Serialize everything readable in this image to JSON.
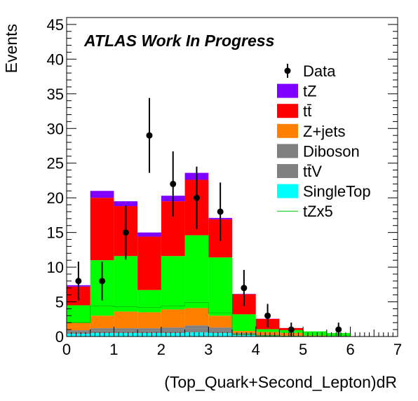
{
  "chart_data": {
    "type": "bar",
    "subtype": "stacked-histogram",
    "title": "ATLAS Work In Progress",
    "xlabel": "(Top_Quark+Second_Lepton)dR",
    "ylabel": "Events",
    "xlim": [
      0,
      7
    ],
    "ylim": [
      0,
      46
    ],
    "bin_edges": [
      0,
      0.5,
      1.0,
      1.5,
      2.0,
      2.5,
      3.0,
      3.5,
      4.0,
      4.5,
      5.0,
      5.5,
      6.0,
      6.5,
      7.0
    ],
    "x_ticks": [
      "0",
      "1",
      "2",
      "3",
      "4",
      "5",
      "6",
      "7"
    ],
    "y_ticks": [
      "0",
      "5",
      "10",
      "15",
      "20",
      "25",
      "30",
      "35",
      "40",
      "45"
    ],
    "legend_position": "top-right",
    "stack": [
      {
        "name": "SingleTop",
        "label": "SingleTop",
        "color": "#00ffff",
        "values": [
          0.4,
          0.5,
          0.5,
          0.5,
          0.5,
          0.6,
          0.5,
          0.2,
          0.1,
          0.05,
          0.02,
          0,
          0,
          0
        ]
      },
      {
        "name": "ttV",
        "label": "tt̄V",
        "color": "#808080",
        "values": [
          0.3,
          0.4,
          0.4,
          0.4,
          0.5,
          0.6,
          0.5,
          0.2,
          0.1,
          0.05,
          0.02,
          0,
          0,
          0
        ]
      },
      {
        "name": "Diboson",
        "label": "Diboson",
        "color": "#808080",
        "values": [
          0.2,
          0.3,
          0.3,
          0.3,
          0.3,
          0.4,
          0.3,
          0.1,
          0.05,
          0.02,
          0,
          0,
          0,
          0
        ]
      },
      {
        "name": "Z+jets",
        "label": "Z+jets",
        "color": "#ff8000",
        "values": [
          1.1,
          1.8,
          2.4,
          2.3,
          2.6,
          2.5,
          1.7,
          0.3,
          0.4,
          0.4,
          0.1,
          0,
          0,
          0
        ]
      },
      {
        "name": "ttV-green",
        "label": "",
        "color": "#00ff00",
        "values": [
          2.5,
          8.0,
          8.0,
          3.2,
          7.7,
          10.5,
          8.4,
          2.4,
          0.4,
          0.4,
          0.6,
          0.5,
          0,
          0
        ]
      },
      {
        "name": "tt",
        "label": "tt̄",
        "color": "#ff0000",
        "values": [
          2.7,
          9.0,
          7.2,
          7.7,
          7.9,
          8.0,
          5.5,
          2.9,
          1.5,
          0.3,
          0,
          0,
          0,
          0
        ]
      },
      {
        "name": "tZ",
        "label": "tZ",
        "color": "#7f00ff",
        "values": [
          0.2,
          1.0,
          0.7,
          0.6,
          0.8,
          1.0,
          0.2,
          0.05,
          0.02,
          0.01,
          0,
          0,
          0,
          0
        ]
      }
    ],
    "tZx5": {
      "name": "tZx5",
      "label": "tZx5",
      "color": "#00c000",
      "values": [
        2.0,
        4.4,
        4.3,
        4.2,
        4.4,
        4.9,
        3.4,
        0.3,
        0.1,
        0.05,
        0.02,
        0,
        0,
        0
      ]
    },
    "data": {
      "name": "Data",
      "label": "Data",
      "x": [
        0.25,
        0.75,
        1.25,
        1.75,
        2.25,
        2.75,
        3.25,
        3.75,
        4.25,
        4.75,
        5.75
      ],
      "y": [
        8,
        8,
        15,
        29,
        22,
        20,
        18,
        7,
        3,
        1,
        1
      ],
      "err_low": [
        2.8,
        2.8,
        3.9,
        5.4,
        4.7,
        4.5,
        4.2,
        2.6,
        1.7,
        1.0,
        1.0
      ],
      "err_high": [
        2.8,
        2.8,
        3.9,
        5.4,
        4.7,
        4.5,
        4.2,
        2.6,
        1.7,
        1.0,
        1.0
      ]
    }
  }
}
